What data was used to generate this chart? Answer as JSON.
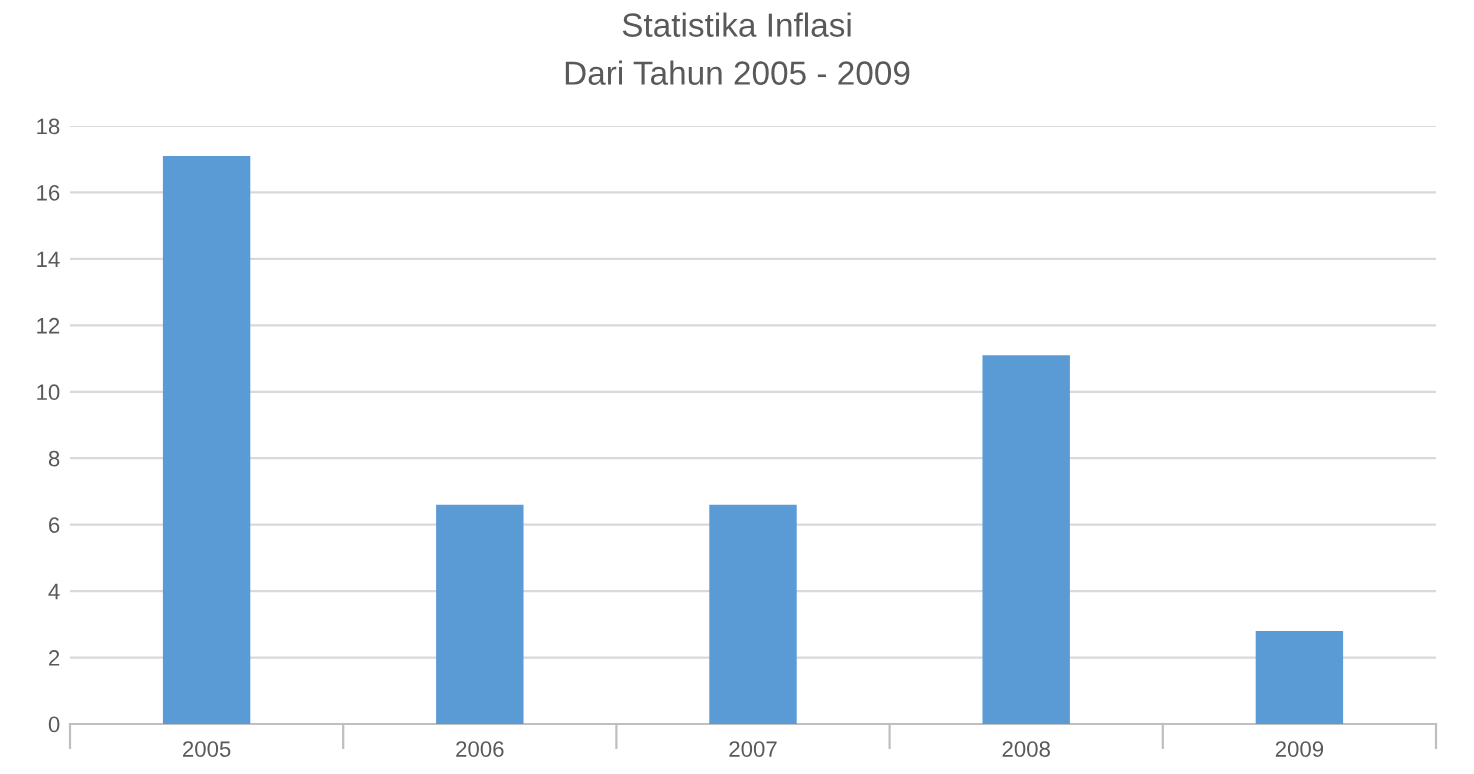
{
  "chart_data": {
    "type": "bar",
    "title": "Statistika Inflasi",
    "subtitle": "Dari Tahun 2005 - 2009",
    "categories": [
      "2005",
      "2006",
      "2007",
      "2008",
      "2009"
    ],
    "values": [
      17.1,
      6.6,
      6.6,
      11.1,
      2.8
    ],
    "color": "#5b9bd5",
    "ylim": [
      0,
      18
    ],
    "yticks": [
      0,
      2,
      4,
      6,
      8,
      10,
      12,
      14,
      16,
      18
    ],
    "grid": "y",
    "legend": false
  }
}
